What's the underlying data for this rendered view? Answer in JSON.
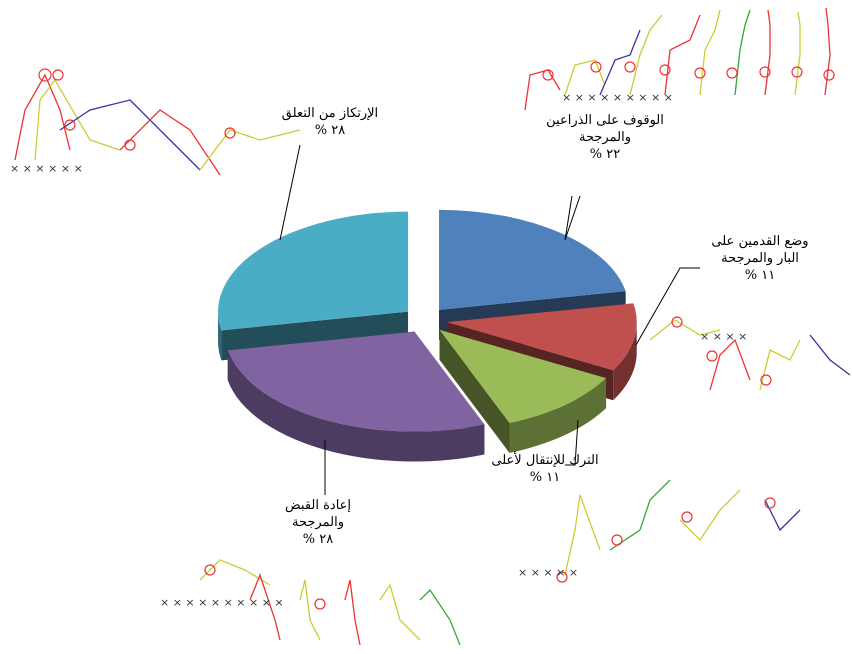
{
  "chart_data": {
    "type": "pie",
    "categories": [
      "الوقوف على الذراعين والمرجحة",
      "وضع القدمين على البار والمرجحة",
      "الترك للإنتقال لأعلى",
      "إعادة القبض والمرجحة",
      "الإرتكاز من التعلق"
    ],
    "values": [
      22,
      11,
      11,
      28,
      28
    ],
    "value_labels": [
      "٢٢ %",
      "١١ %",
      "١١ %",
      "٢٨ %",
      "٢٨ %"
    ],
    "colors": [
      "#4f81bd",
      "#c0504d",
      "#9bbb59",
      "#8064a2",
      "#4bacc6"
    ]
  }
}
